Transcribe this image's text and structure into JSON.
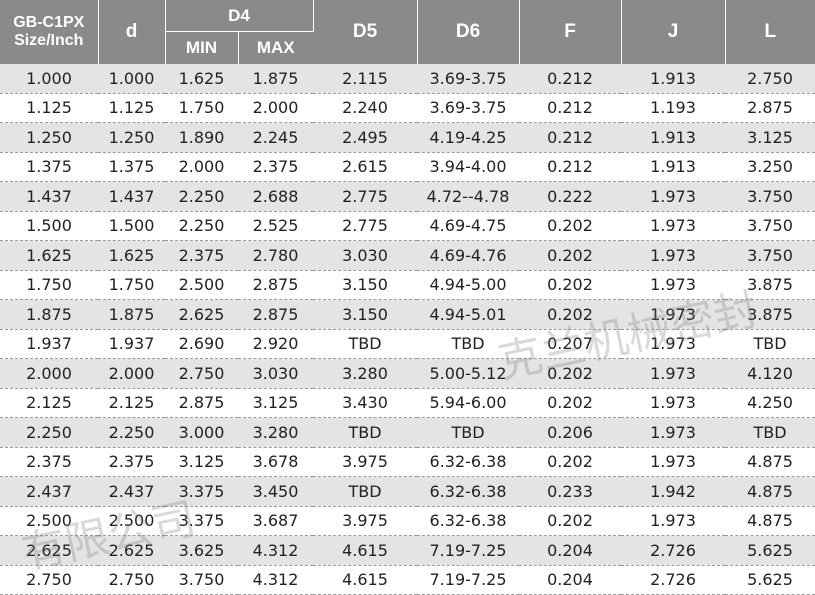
{
  "table": {
    "headers": {
      "size_line1": "GB-C1PX",
      "size_line2": "Size/Inch",
      "d": "d",
      "d4": "D4",
      "d4_min": "MIN",
      "d4_max": "MAX",
      "d5": "D5",
      "d6": "D6",
      "f": "F",
      "j": "J",
      "l": "L"
    },
    "rows": [
      [
        "1.000",
        "1.000",
        "1.625",
        "1.875",
        "2.115",
        "3.69-3.75",
        "0.212",
        "1.913",
        "2.750"
      ],
      [
        "1.125",
        "1.125",
        "1.750",
        "2.000",
        "2.240",
        "3.69-3.75",
        "0.212",
        "1.193",
        "2.875"
      ],
      [
        "1.250",
        "1.250",
        "1.890",
        "2.245",
        "2.495",
        "4.19-4.25",
        "0.212",
        "1.913",
        "3.125"
      ],
      [
        "1.375",
        "1.375",
        "2.000",
        "2.375",
        "2.615",
        "3.94-4.00",
        "0.212",
        "1.913",
        "3.250"
      ],
      [
        "1.437",
        "1.437",
        "2.250",
        "2.688",
        "2.775",
        "4.72--4.78",
        "0.222",
        "1.973",
        "3.750"
      ],
      [
        "1.500",
        "1.500",
        "2.250",
        "2.525",
        "2.775",
        "4.69-4.75",
        "0.202",
        "1.973",
        "3.750"
      ],
      [
        "1.625",
        "1.625",
        "2.375",
        "2.780",
        "3.030",
        "4.69-4.76",
        "0.202",
        "1.973",
        "3.750"
      ],
      [
        "1.750",
        "1.750",
        "2.500",
        "2.875",
        "3.150",
        "4.94-5.00",
        "0.202",
        "1.973",
        "3.875"
      ],
      [
        "1.875",
        "1.875",
        "2.625",
        "2.875",
        "3.150",
        "4.94-5.01",
        "0.202",
        "1.973",
        "3.875"
      ],
      [
        "1.937",
        "1.937",
        "2.690",
        "2.920",
        "TBD",
        "TBD",
        "0.207",
        "1.973",
        "TBD"
      ],
      [
        "2.000",
        "2.000",
        "2.750",
        "3.030",
        "3.280",
        "5.00-5.12",
        "0.202",
        "1.973",
        "4.120"
      ],
      [
        "2.125",
        "2.125",
        "2.875",
        "3.125",
        "3.430",
        "5.94-6.00",
        "0.202",
        "1.973",
        "4.250"
      ],
      [
        "2.250",
        "2.250",
        "3.000",
        "3.280",
        "TBD",
        "TBD",
        "0.206",
        "1.973",
        "TBD"
      ],
      [
        "2.375",
        "2.375",
        "3.125",
        "3.678",
        "3.975",
        "6.32-6.38",
        "0.202",
        "1.973",
        "4.875"
      ],
      [
        "2.437",
        "2.437",
        "3.375",
        "3.450",
        "TBD",
        "6.32-6.38",
        "0.233",
        "1.942",
        "4.875"
      ],
      [
        "2.500",
        "2.500",
        "3.375",
        "3.687",
        "3.975",
        "6.32-6.38",
        "0.202",
        "1.973",
        "4.875"
      ],
      [
        "2.625",
        "2.625",
        "3.625",
        "4.312",
        "4.615",
        "7.19-7.25",
        "0.204",
        "2.726",
        "5.625"
      ],
      [
        "2.750",
        "2.750",
        "3.750",
        "4.312",
        "4.615",
        "7.19-7.25",
        "0.204",
        "2.726",
        "5.625"
      ]
    ]
  },
  "watermark": {
    "text_right": "克兰机械密封",
    "text_left": "有限公司"
  }
}
